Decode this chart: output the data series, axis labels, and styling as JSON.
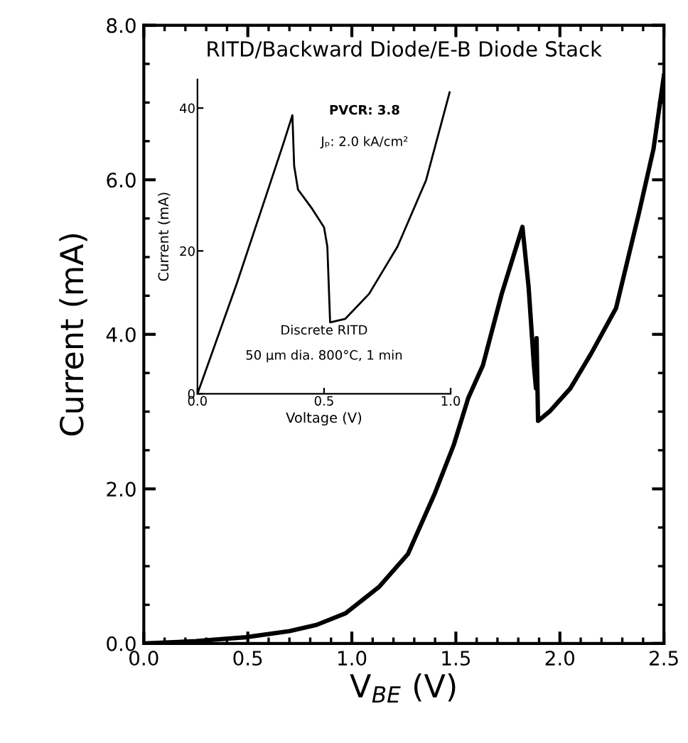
{
  "chart_data": [
    {
      "type": "line",
      "title": "RITD/Backward Diode/E-B Diode Stack",
      "xlabel": "V$_{BE}$ (V)",
      "ylabel": "Current (mA)",
      "xlim": [
        0,
        2.5
      ],
      "ylim": [
        0,
        8
      ],
      "xticks": [
        {
          "value": 0,
          "label": "0.0"
        },
        {
          "value": 0.5,
          "label": "0.5"
        },
        {
          "value": 1,
          "label": "1.0"
        },
        {
          "value": 1.5,
          "label": "1.5"
        },
        {
          "value": 2,
          "label": "2.0"
        },
        {
          "value": 2.5,
          "label": "2.5"
        }
      ],
      "yticks": [
        {
          "value": 0,
          "label": "0.0"
        },
        {
          "value": 2,
          "label": "2.0"
        },
        {
          "value": 4,
          "label": "4.0"
        },
        {
          "value": 6,
          "label": "6.0"
        },
        {
          "value": 8,
          "label": "8.0"
        }
      ],
      "series": [
        {
          "color": "#000000",
          "x": [
            0,
            0.25,
            0.49,
            0.7,
            0.83,
            0.97,
            1.13,
            1.27,
            1.4,
            1.49,
            1.56,
            1.63,
            1.72,
            1.82,
            1.85,
            1.875,
            1.885,
            1.888,
            1.895,
            1.95,
            2.05,
            2.15,
            2.27,
            2.38,
            2.45,
            2.5
          ],
          "values": [
            0,
            0.03,
            0.08,
            0.16,
            0.24,
            0.39,
            0.73,
            1.16,
            1.95,
            2.57,
            3.18,
            3.6,
            4.52,
            5.39,
            4.6,
            3.6,
            3.3,
            3.95,
            2.88,
            3.0,
            3.3,
            3.75,
            4.34,
            5.57,
            6.4,
            7.35
          ]
        }
      ]
    },
    {
      "type": "line",
      "xlabel": "Voltage (V)",
      "ylabel": "Current (mA)",
      "xlim": [
        0,
        1
      ],
      "ylim": [
        0,
        44
      ],
      "xticks": [
        {
          "value": 0,
          "label": "0.0"
        },
        {
          "value": 0.5,
          "label": "0.5"
        },
        {
          "value": 1,
          "label": "1.0"
        }
      ],
      "yticks": [
        0,
        20,
        40
      ],
      "annotations": [
        "PVCR: 3.8",
        "Jₚ: 2.0 kA/cm²",
        "Discrete RITD",
        "50 µm dia. 800°C, 1 min"
      ],
      "series": [
        {
          "color": "#000000",
          "x": [
            0,
            0.154,
            0.266,
            0.341,
            0.375,
            0.382,
            0.397,
            0.453,
            0.5,
            0.513,
            0.524,
            0.584,
            0.678,
            0.79,
            0.903,
            0.996
          ],
          "values": [
            0,
            15.3,
            27.2,
            35.2,
            39.0,
            31.9,
            28.6,
            25.9,
            23.3,
            20.6,
            10.0,
            10.5,
            14.0,
            20.6,
            29.9,
            42.2
          ]
        }
      ]
    }
  ]
}
